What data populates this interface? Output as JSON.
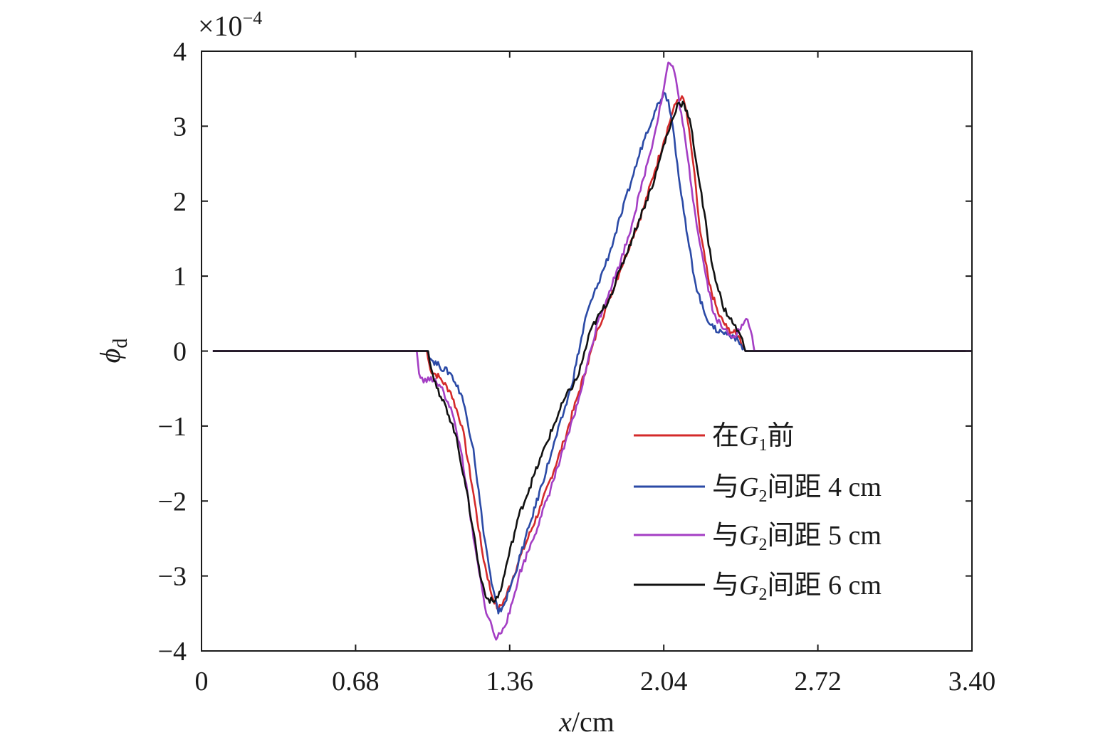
{
  "chart_data": {
    "type": "line",
    "multiplier_label": "×10",
    "multiplier_exp": "−4",
    "xlabel_var": "x",
    "xlabel_unit": "/cm",
    "ylabel_var": "ϕ",
    "ylabel_sub": "d",
    "xlim": [
      0,
      3.4
    ],
    "ylim": [
      -4,
      4
    ],
    "x_ticks": [
      0,
      0.68,
      1.36,
      2.04,
      2.72,
      3.4
    ],
    "x_tick_labels": [
      "0",
      "0.68",
      "1.36",
      "2.04",
      "2.72",
      "3.40"
    ],
    "y_ticks": [
      -4,
      -3,
      -2,
      -1,
      0,
      1,
      2,
      3,
      4
    ],
    "y_tick_labels": [
      "−4",
      "−3",
      "−2",
      "−1",
      "0",
      "1",
      "2",
      "3",
      "4"
    ],
    "grid": false,
    "legend_position": "lower-right",
    "series": [
      {
        "name_pre": "在",
        "name_sub": "1",
        "name_post": "前",
        "color": "#d42a2a",
        "x": [
          0.05,
          0.995,
          1.0,
          1.01,
          1.05,
          1.1,
          1.15,
          1.2,
          1.24,
          1.28,
          1.31,
          1.34,
          1.4,
          1.5,
          1.6,
          1.66,
          1.7,
          1.75,
          1.8,
          1.85,
          1.9,
          1.95,
          2.0,
          2.04,
          2.08,
          2.1,
          2.12,
          2.14,
          2.17,
          2.2,
          2.24,
          2.28,
          2.32,
          2.37,
          2.4,
          3.4
        ],
        "y": [
          0,
          0,
          -0.1,
          -0.25,
          -0.35,
          -0.55,
          -1.0,
          -1.9,
          -2.7,
          -3.25,
          -3.45,
          -3.3,
          -2.8,
          -2.05,
          -1.2,
          -0.6,
          -0.2,
          0.3,
          0.7,
          1.1,
          1.5,
          1.9,
          2.4,
          2.8,
          3.2,
          3.35,
          3.4,
          3.2,
          2.5,
          1.6,
          0.9,
          0.5,
          0.3,
          0.2,
          0,
          0
        ]
      },
      {
        "name_pre": "与",
        "name_sub": "2",
        "name_post": "间距 4 cm",
        "color": "#2b4aa6",
        "x": [
          0.05,
          1.0,
          1.01,
          1.05,
          1.1,
          1.15,
          1.2,
          1.24,
          1.28,
          1.31,
          1.34,
          1.38,
          1.45,
          1.55,
          1.63,
          1.7,
          1.75,
          1.8,
          1.85,
          1.9,
          1.95,
          2.0,
          2.04,
          2.06,
          2.08,
          2.1,
          2.14,
          2.18,
          2.22,
          2.26,
          2.3,
          2.35,
          2.4,
          3.4
        ],
        "y": [
          0,
          0,
          -0.1,
          -0.2,
          -0.3,
          -0.6,
          -1.3,
          -2.3,
          -3.1,
          -3.5,
          -3.35,
          -3.0,
          -2.3,
          -1.3,
          -0.5,
          0.5,
          0.9,
          1.3,
          1.8,
          2.3,
          2.8,
          3.2,
          3.45,
          3.35,
          3.0,
          2.5,
          1.6,
          0.9,
          0.5,
          0.3,
          0.25,
          0.2,
          0,
          0
        ]
      },
      {
        "name_pre": "与",
        "name_sub": "2",
        "name_post": "间距 5 cm",
        "color": "#a43ec4",
        "x": [
          0.05,
          0.95,
          0.96,
          0.98,
          1.0,
          1.05,
          1.1,
          1.15,
          1.2,
          1.25,
          1.3,
          1.33,
          1.36,
          1.4,
          1.5,
          1.6,
          1.66,
          1.7,
          1.75,
          1.8,
          1.85,
          1.9,
          1.95,
          2.0,
          2.04,
          2.06,
          2.08,
          2.1,
          2.14,
          2.18,
          2.22,
          2.26,
          2.3,
          2.35,
          2.39,
          2.41,
          2.43,
          2.44,
          3.4
        ],
        "y": [
          0,
          0,
          -0.3,
          -0.42,
          -0.35,
          -0.45,
          -0.75,
          -1.4,
          -2.5,
          -3.4,
          -3.85,
          -3.7,
          -3.5,
          -3.0,
          -2.2,
          -1.3,
          -0.7,
          -0.2,
          0.4,
          0.8,
          1.2,
          1.7,
          2.3,
          2.9,
          3.5,
          3.85,
          3.8,
          3.5,
          2.7,
          1.8,
          1.1,
          0.5,
          0.3,
          0.2,
          0.35,
          0.42,
          0.2,
          0,
          0
        ]
      },
      {
        "name_pre": "与",
        "name_sub": "2",
        "name_post": "间距 6 cm",
        "color": "#111111",
        "x": [
          0.05,
          1.0,
          1.02,
          1.05,
          1.08,
          1.12,
          1.16,
          1.2,
          1.23,
          1.26,
          1.29,
          1.32,
          1.35,
          1.4,
          1.5,
          1.6,
          1.66,
          1.72,
          1.8,
          1.85,
          1.9,
          1.95,
          2.0,
          2.04,
          2.08,
          2.1,
          2.13,
          2.16,
          2.2,
          2.25,
          2.3,
          2.35,
          2.38,
          2.4,
          3.4
        ],
        "y": [
          0,
          0,
          -0.3,
          -0.6,
          -0.75,
          -1.1,
          -1.7,
          -2.4,
          -3.0,
          -3.3,
          -3.35,
          -3.2,
          -2.8,
          -2.2,
          -1.4,
          -0.65,
          -0.35,
          0.3,
          0.7,
          1.1,
          1.5,
          1.9,
          2.3,
          2.75,
          3.1,
          3.3,
          3.3,
          3.0,
          2.2,
          1.2,
          0.6,
          0.35,
          0.2,
          0,
          0
        ]
      }
    ]
  }
}
